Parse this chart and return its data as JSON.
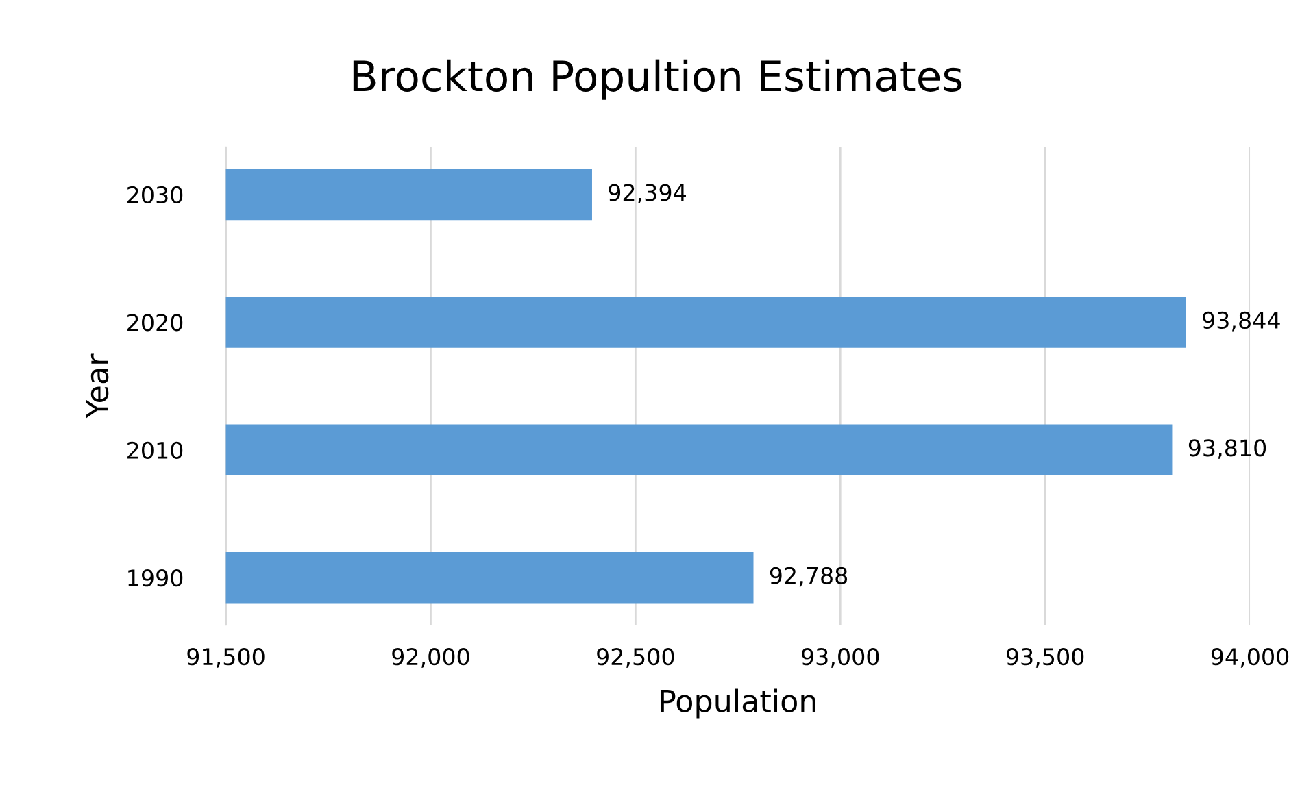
{
  "chart_data": {
    "type": "bar",
    "orientation": "horizontal",
    "title": "Brockton Popultion Estimates",
    "xlabel": "Population",
    "ylabel": "Year",
    "categories": [
      "2030",
      "2020",
      "2010",
      "1990"
    ],
    "values": [
      92394,
      93844,
      93810,
      92788
    ],
    "color": "#5b9bd5",
    "xlim": [
      91500,
      94000
    ],
    "xticks": [
      {
        "value": 91500,
        "label": "91,500"
      },
      {
        "value": 92000,
        "label": "92,000"
      },
      {
        "value": 92500,
        "label": "92,500"
      },
      {
        "value": 93000,
        "label": "93,000"
      },
      {
        "value": 93500,
        "label": "93,500"
      },
      {
        "value": 94000,
        "label": "94,000"
      }
    ],
    "value_labels": [
      "92,394",
      "93,844",
      "93,810",
      "92,788"
    ],
    "grid": "x",
    "legend": false
  }
}
